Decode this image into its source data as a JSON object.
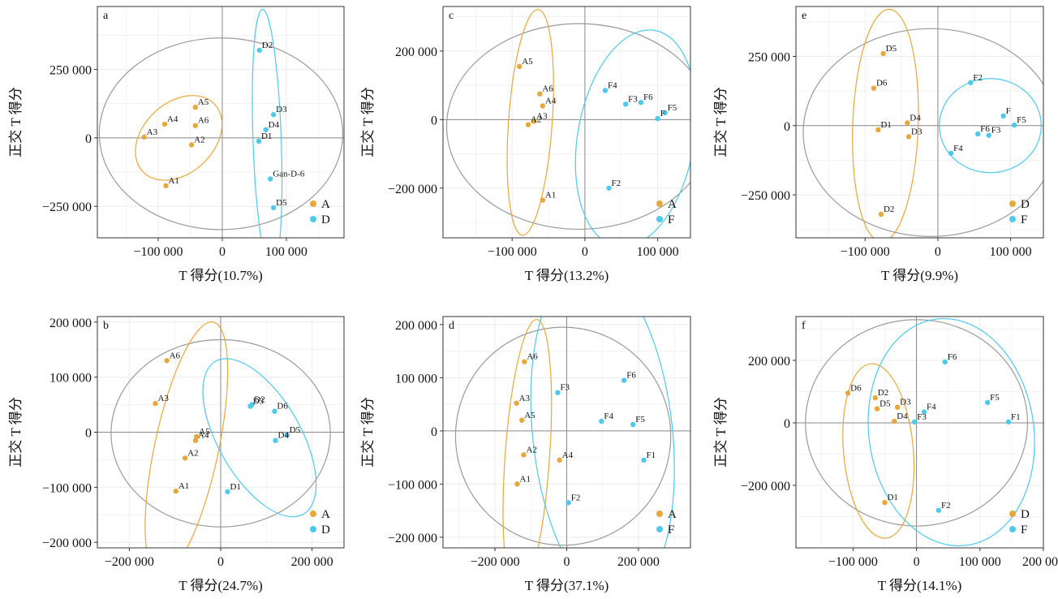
{
  "colors": {
    "orange": "#E8A73A",
    "cyan": "#4FC9EB",
    "gray": "#9a9a9a",
    "grid": "#ececec",
    "axis": "#333333"
  },
  "ylabel": "正交 T 得分",
  "chart_data": [
    {
      "id": "a",
      "type": "scatter",
      "panel_label": "a",
      "xlabel": "T 得分(10.7%)",
      "ylabel": "正交 T 得分",
      "xlim": [
        -195000,
        190000
      ],
      "ylim": [
        -365000,
        480000
      ],
      "xticks": [
        -100000,
        0,
        100000
      ],
      "xtick_labels": [
        "−100 000",
        "0",
        "100 000"
      ],
      "yticks": [
        -250000,
        0,
        250000
      ],
      "ytick_labels": [
        "−250 000",
        "0",
        "250 000"
      ],
      "grid": true,
      "legend_position": "bottom-right",
      "series": [
        {
          "name": "A",
          "color": "orange",
          "points": [
            {
              "label": "A1",
              "x": -88000,
              "y": -175000
            },
            {
              "label": "A2",
              "x": -48000,
              "y": -25000
            },
            {
              "label": "A3",
              "x": -122000,
              "y": 3000
            },
            {
              "label": "A4",
              "x": -90000,
              "y": 50000
            },
            {
              "label": "A5",
              "x": -42000,
              "y": 112000
            },
            {
              "label": "A6",
              "x": -42000,
              "y": 45000
            }
          ]
        },
        {
          "name": "D",
          "color": "cyan",
          "points": [
            {
              "label": "D2",
              "x": 58000,
              "y": 320000
            },
            {
              "label": "D3",
              "x": 80000,
              "y": 85000
            },
            {
              "label": "D4",
              "x": 68000,
              "y": 30000
            },
            {
              "label": "D1",
              "x": 57000,
              "y": -12000
            },
            {
              "label": "Gan-D-6",
              "x": 75000,
              "y": -150000
            },
            {
              "label": "D5",
              "x": 80000,
              "y": -255000
            }
          ]
        }
      ],
      "ellipses": [
        {
          "color": "gray",
          "cx": -2000,
          "cy": 15000,
          "rx": 190000,
          "ry": 350000,
          "angle": 0
        },
        {
          "color": "orange",
          "cx": -68000,
          "cy": 0,
          "rx": 55000,
          "ry": 180000,
          "angle": 47
        },
        {
          "color": "cyan",
          "cx": 70000,
          "cy": -10000,
          "rx": 22000,
          "ry": 480000,
          "angle": -2
        }
      ]
    },
    {
      "id": "b",
      "type": "scatter",
      "panel_label": "b",
      "xlabel": "T 得分(24.7%)",
      "ylabel": "正交 T 得分",
      "xlim": [
        -270000,
        270000
      ],
      "ylim": [
        -210000,
        210000
      ],
      "xticks": [
        -200000,
        0,
        200000
      ],
      "xtick_labels": [
        "−200 000",
        "0",
        "200 000"
      ],
      "yticks": [
        -200000,
        -100000,
        0,
        100000,
        200000
      ],
      "ytick_labels": [
        "−200 000",
        "−100 000",
        "0",
        "100 000",
        "200 000"
      ],
      "grid": true,
      "legend_position": "bottom-right",
      "series": [
        {
          "name": "A",
          "color": "orange",
          "points": [
            {
              "label": "A6",
              "x": -118000,
              "y": 130000
            },
            {
              "label": "A3",
              "x": -143000,
              "y": 52000
            },
            {
              "label": "A5",
              "x": -53000,
              "y": -8000
            },
            {
              "label": "A4",
              "x": -55000,
              "y": -15000
            },
            {
              "label": "A2",
              "x": -78000,
              "y": -47000
            },
            {
              "label": "A1",
              "x": -98000,
              "y": -107000
            }
          ]
        },
        {
          "name": "D",
          "color": "cyan",
          "points": [
            {
              "label": "D2",
              "x": 68000,
              "y": 50000
            },
            {
              "label": "D3",
              "x": 65000,
              "y": 47000
            },
            {
              "label": "D6",
              "x": 118000,
              "y": 38000
            },
            {
              "label": "D5",
              "x": 145000,
              "y": -5000
            },
            {
              "label": "D4",
              "x": 120000,
              "y": -15000
            },
            {
              "label": "D1",
              "x": 15000,
              "y": -108000
            }
          ]
        }
      ],
      "ellipses": [
        {
          "color": "gray",
          "cx": 0,
          "cy": -2000,
          "rx": 240000,
          "ry": 170000,
          "angle": 0
        },
        {
          "color": "orange",
          "cx": -75000,
          "cy": -30000,
          "rx": 70000,
          "ry": 235000,
          "angle": 12
        },
        {
          "color": "cyan",
          "cx": 85000,
          "cy": -10000,
          "rx": 90000,
          "ry": 160000,
          "angle": -30
        }
      ]
    },
    {
      "id": "c",
      "type": "scatter",
      "panel_label": "c",
      "xlabel": "T 得分(13.2%)",
      "ylabel": "正交 T 得分",
      "xlim": [
        -195000,
        145000
      ],
      "ylim": [
        -345000,
        330000
      ],
      "xticks": [
        -100000,
        0,
        100000
      ],
      "xtick_labels": [
        "−100 000",
        "0",
        "100 000"
      ],
      "yticks": [
        -200000,
        0,
        200000
      ],
      "ytick_labels": [
        "−200 000",
        "0",
        "200 000"
      ],
      "grid": true,
      "legend_position": "bottom-right",
      "series": [
        {
          "name": "A",
          "color": "orange",
          "points": [
            {
              "label": "A5",
              "x": -90000,
              "y": 155000
            },
            {
              "label": "A6",
              "x": -62000,
              "y": 75000
            },
            {
              "label": "A4",
              "x": -58000,
              "y": 40000
            },
            {
              "label": "A3",
              "x": -70000,
              "y": -5000
            },
            {
              "label": "A2",
              "x": -78000,
              "y": -15000
            },
            {
              "label": "A1",
              "x": -58000,
              "y": -235000
            }
          ]
        },
        {
          "name": "F",
          "color": "cyan",
          "points": [
            {
              "label": "F4",
              "x": 28000,
              "y": 85000
            },
            {
              "label": "F6",
              "x": 77000,
              "y": 50000
            },
            {
              "label": "F3",
              "x": 56000,
              "y": 45000
            },
            {
              "label": "F5",
              "x": 110000,
              "y": 20000
            },
            {
              "label": "F",
              "x": 100000,
              "y": 3000
            },
            {
              "label": "F2",
              "x": 33000,
              "y": -200000
            }
          ]
        }
      ],
      "ellipses": [
        {
          "color": "gray",
          "cx": -8000,
          "cy": -20000,
          "rx": 182000,
          "ry": 300000,
          "angle": 0
        },
        {
          "color": "orange",
          "cx": -75000,
          "cy": -8000,
          "rx": 30000,
          "ry": 330000,
          "angle": 4
        },
        {
          "color": "cyan",
          "cx": 70000,
          "cy": -55000,
          "rx": 80000,
          "ry": 320000,
          "angle": 10
        }
      ]
    },
    {
      "id": "d",
      "type": "scatter",
      "panel_label": "d",
      "xlabel": "T 得分(37.1%)",
      "ylabel": "正交 T 得分",
      "xlim": [
        -345000,
        345000
      ],
      "ylim": [
        -220000,
        215000
      ],
      "xticks": [
        -200000,
        0,
        200000
      ],
      "xtick_labels": [
        "−200 000",
        "0",
        "200 000"
      ],
      "yticks": [
        -200000,
        -100000,
        0,
        100000,
        200000
      ],
      "ytick_labels": [
        "−200 000",
        "−100 000",
        "0",
        "100 000",
        "200 000"
      ],
      "grid": true,
      "legend_position": "bottom-right",
      "series": [
        {
          "name": "A",
          "color": "orange",
          "points": [
            {
              "label": "A6",
              "x": -118000,
              "y": 130000
            },
            {
              "label": "A3",
              "x": -140000,
              "y": 52000
            },
            {
              "label": "A5",
              "x": -125000,
              "y": 20000
            },
            {
              "label": "A2",
              "x": -120000,
              "y": -45000
            },
            {
              "label": "A4",
              "x": -20000,
              "y": -55000
            },
            {
              "label": "A1",
              "x": -138000,
              "y": -100000
            }
          ]
        },
        {
          "name": "F",
          "color": "cyan",
          "points": [
            {
              "label": "F3",
              "x": -25000,
              "y": 72000
            },
            {
              "label": "F6",
              "x": 160000,
              "y": 95000
            },
            {
              "label": "F4",
              "x": 97000,
              "y": 18000
            },
            {
              "label": "F5",
              "x": 185000,
              "y": 12000
            },
            {
              "label": "F1",
              "x": 215000,
              "y": -55000
            },
            {
              "label": "F2",
              "x": 5000,
              "y": -135000
            }
          ]
        }
      ],
      "ellipses": [
        {
          "color": "gray",
          "cx": -10000,
          "cy": -10000,
          "rx": 300000,
          "ry": 205000,
          "angle": 0
        },
        {
          "color": "orange",
          "cx": -110000,
          "cy": -50000,
          "rx": 62000,
          "ry": 260000,
          "angle": 4
        },
        {
          "color": "cyan",
          "cx": 100000,
          "cy": -5000,
          "rx": 195000,
          "ry": 320000,
          "angle": -6
        }
      ]
    },
    {
      "id": "e",
      "type": "scatter",
      "panel_label": "e",
      "xlabel": "T 得分(9.9%)",
      "ylabel": "正交 T 得分",
      "xlim": [
        -195000,
        145000
      ],
      "ylim": [
        -405000,
        430000
      ],
      "xticks": [
        -100000,
        0,
        100000
      ],
      "xtick_labels": [
        "−100 000",
        "0",
        "100 000"
      ],
      "yticks": [
        -250000,
        0,
        250000
      ],
      "ytick_labels": [
        "−250 000",
        "0",
        "250 000"
      ],
      "grid": true,
      "legend_position": "bottom-right",
      "series": [
        {
          "name": "D",
          "color": "orange",
          "points": [
            {
              "label": "D5",
              "x": -75000,
              "y": 260000
            },
            {
              "label": "D6",
              "x": -88000,
              "y": 135000
            },
            {
              "label": "D4",
              "x": -42000,
              "y": 10000
            },
            {
              "label": "D1",
              "x": -82000,
              "y": -15000
            },
            {
              "label": "D3",
              "x": -40000,
              "y": -40000
            },
            {
              "label": "D2",
              "x": -78000,
              "y": -320000
            }
          ]
        },
        {
          "name": "F",
          "color": "cyan",
          "points": [
            {
              "label": "F2",
              "x": 45000,
              "y": 155000
            },
            {
              "label": "F",
              "x": 90000,
              "y": 35000
            },
            {
              "label": "F5",
              "x": 105000,
              "y": 2000
            },
            {
              "label": "F6",
              "x": 55000,
              "y": -30000
            },
            {
              "label": "F3",
              "x": 70000,
              "y": -35000
            },
            {
              "label": "F4",
              "x": 18000,
              "y": -100000
            }
          ]
        }
      ],
      "ellipses": [
        {
          "color": "gray",
          "cx": -10000,
          "cy": -25000,
          "rx": 175000,
          "ry": 375000,
          "angle": 0
        },
        {
          "color": "orange",
          "cx": -72000,
          "cy": 0,
          "rx": 45000,
          "ry": 420000,
          "angle": 2
        },
        {
          "color": "cyan",
          "cx": 72000,
          "cy": 0,
          "rx": 70000,
          "ry": 170000,
          "angle": 0
        }
      ]
    },
    {
      "id": "f",
      "type": "scatter",
      "panel_label": "f",
      "xlabel": "T 得分(14.1%)",
      "ylabel": "正交 T 得分",
      "xlim": [
        -190000,
        200000
      ],
      "ylim": [
        -400000,
        340000
      ],
      "xticks": [
        -100000,
        0,
        100000,
        200000
      ],
      "xtick_labels": [
        "−100 000",
        "0",
        "100 000",
        "200 000"
      ],
      "yticks": [
        -200000,
        0,
        200000
      ],
      "ytick_labels": [
        "−200 000",
        "0",
        "200 000"
      ],
      "grid": true,
      "legend_position": "bottom-right",
      "series": [
        {
          "name": "D",
          "color": "orange",
          "points": [
            {
              "label": "D6",
              "x": -108000,
              "y": 95000
            },
            {
              "label": "D2",
              "x": -65000,
              "y": 80000
            },
            {
              "label": "D5",
              "x": -62000,
              "y": 45000
            },
            {
              "label": "D3",
              "x": -30000,
              "y": 50000
            },
            {
              "label": "D4",
              "x": -35000,
              "y": 5000
            },
            {
              "label": "D1",
              "x": -50000,
              "y": -255000
            }
          ]
        },
        {
          "name": "F",
          "color": "cyan",
          "points": [
            {
              "label": "F6",
              "x": 45000,
              "y": 195000
            },
            {
              "label": "F5",
              "x": 112000,
              "y": 65000
            },
            {
              "label": "F4",
              "x": 12000,
              "y": 35000
            },
            {
              "label": "F3",
              "x": -3000,
              "y": 3000
            },
            {
              "label": "F1",
              "x": 145000,
              "y": 3000
            },
            {
              "label": "F2",
              "x": 35000,
              "y": -280000
            }
          ]
        }
      ],
      "ellipses": [
        {
          "color": "gray",
          "cx": 0,
          "cy": 0,
          "rx": 175000,
          "ry": 330000,
          "angle": 0
        },
        {
          "color": "orange",
          "cx": -60000,
          "cy": -90000,
          "rx": 55000,
          "ry": 280000,
          "angle": -5
        },
        {
          "color": "cyan",
          "cx": 55000,
          "cy": -30000,
          "rx": 130000,
          "ry": 365000,
          "angle": -8
        }
      ]
    }
  ]
}
